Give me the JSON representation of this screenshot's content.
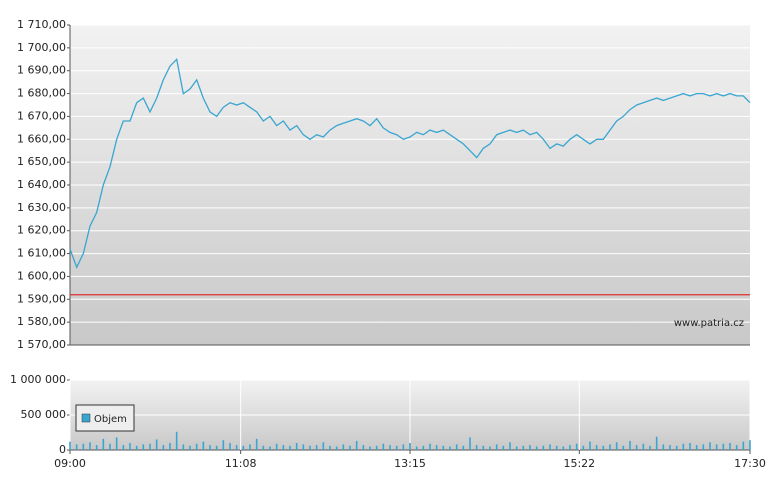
{
  "chart_data": [
    {
      "type": "line",
      "x": [
        "09:00",
        "09:05",
        "09:10",
        "09:15",
        "09:20",
        "09:25",
        "09:30",
        "09:35",
        "09:40",
        "09:45",
        "09:50",
        "09:55",
        "10:00",
        "10:05",
        "10:10",
        "10:15",
        "10:20",
        "10:25",
        "10:30",
        "10:35",
        "10:40",
        "10:45",
        "10:50",
        "10:55",
        "11:00",
        "11:05",
        "11:10",
        "11:15",
        "11:20",
        "11:25",
        "11:30",
        "11:35",
        "11:40",
        "11:45",
        "11:50",
        "11:55",
        "12:00",
        "12:05",
        "12:10",
        "12:15",
        "12:20",
        "12:25",
        "12:30",
        "12:35",
        "12:40",
        "12:45",
        "12:50",
        "12:55",
        "13:00",
        "13:05",
        "13:10",
        "13:15",
        "13:20",
        "13:25",
        "13:30",
        "13:35",
        "13:40",
        "13:45",
        "13:50",
        "13:55",
        "14:00",
        "14:05",
        "14:10",
        "14:15",
        "14:20",
        "14:25",
        "14:30",
        "14:35",
        "14:40",
        "14:45",
        "14:50",
        "14:55",
        "15:00",
        "15:05",
        "15:10",
        "15:15",
        "15:20",
        "15:25",
        "15:30",
        "15:35",
        "15:40",
        "15:45",
        "15:50",
        "15:55",
        "16:00",
        "16:05",
        "16:10",
        "16:15",
        "16:20",
        "16:25",
        "16:30",
        "16:35",
        "16:40",
        "16:45",
        "16:50",
        "16:55",
        "17:00",
        "17:05",
        "17:10",
        "17:15",
        "17:20",
        "17:25",
        "17:30"
      ],
      "series": [
        {
          "color": "#3aa6d0",
          "values": [
            1612,
            1604,
            1610,
            1622,
            1628,
            1640,
            1648,
            1660,
            1668,
            1668,
            1676,
            1678,
            1672,
            1678,
            1686,
            1692,
            1695,
            1680,
            1682,
            1686,
            1678,
            1672,
            1670,
            1674,
            1676,
            1675,
            1676,
            1674,
            1672,
            1668,
            1670,
            1666,
            1668,
            1664,
            1666,
            1662,
            1660,
            1662,
            1661,
            1664,
            1666,
            1667,
            1668,
            1669,
            1668,
            1666,
            1669,
            1665,
            1663,
            1662,
            1660,
            1661,
            1663,
            1662,
            1664,
            1663,
            1664,
            1662,
            1660,
            1658,
            1655,
            1652,
            1656,
            1658,
            1662,
            1663,
            1664,
            1663,
            1664,
            1662,
            1663,
            1660,
            1656,
            1658,
            1657,
            1660,
            1662,
            1660,
            1658,
            1660,
            1660,
            1664,
            1668,
            1670,
            1673,
            1675,
            1676,
            1677,
            1678,
            1677,
            1678,
            1679,
            1680,
            1679,
            1680,
            1680,
            1679,
            1680,
            1679,
            1680,
            1679,
            1679,
            1676
          ]
        }
      ],
      "xlim": [
        "09:00",
        "17:30"
      ],
      "ylim": [
        1570,
        1710
      ],
      "yticks": [
        {
          "value": 1570,
          "label": "1 570,00"
        },
        {
          "value": 1580,
          "label": "1 580,00"
        },
        {
          "value": 1590,
          "label": "1 590,00"
        },
        {
          "value": 1600,
          "label": "1 600,00"
        },
        {
          "value": 1610,
          "label": "1 610,00"
        },
        {
          "value": 1620,
          "label": "1 620,00"
        },
        {
          "value": 1630,
          "label": "1 630,00"
        },
        {
          "value": 1640,
          "label": "1 640,00"
        },
        {
          "value": 1650,
          "label": "1 650,00"
        },
        {
          "value": 1660,
          "label": "1 660,00"
        },
        {
          "value": 1670,
          "label": "1 670,00"
        },
        {
          "value": 1680,
          "label": "1 680,00"
        },
        {
          "value": 1690,
          "label": "1 690,00"
        },
        {
          "value": 1700,
          "label": "1 700,00"
        },
        {
          "value": 1710,
          "label": "1 710,00"
        }
      ],
      "reference_value": 1592,
      "reference_color": "#e03030",
      "watermark": "www.patria.cz",
      "grid": true
    },
    {
      "type": "bar",
      "x": [
        "09:00",
        "09:05",
        "09:10",
        "09:15",
        "09:20",
        "09:25",
        "09:30",
        "09:35",
        "09:40",
        "09:45",
        "09:50",
        "09:55",
        "10:00",
        "10:05",
        "10:10",
        "10:15",
        "10:20",
        "10:25",
        "10:30",
        "10:35",
        "10:40",
        "10:45",
        "10:50",
        "10:55",
        "11:00",
        "11:05",
        "11:10",
        "11:15",
        "11:20",
        "11:25",
        "11:30",
        "11:35",
        "11:40",
        "11:45",
        "11:50",
        "11:55",
        "12:00",
        "12:05",
        "12:10",
        "12:15",
        "12:20",
        "12:25",
        "12:30",
        "12:35",
        "12:40",
        "12:45",
        "12:50",
        "12:55",
        "13:00",
        "13:05",
        "13:10",
        "13:15",
        "13:20",
        "13:25",
        "13:30",
        "13:35",
        "13:40",
        "13:45",
        "13:50",
        "13:55",
        "14:00",
        "14:05",
        "14:10",
        "14:15",
        "14:20",
        "14:25",
        "14:30",
        "14:35",
        "14:40",
        "14:45",
        "14:50",
        "14:55",
        "15:00",
        "15:05",
        "15:10",
        "15:15",
        "15:20",
        "15:25",
        "15:30",
        "15:35",
        "15:40",
        "15:45",
        "15:50",
        "15:55",
        "16:00",
        "16:05",
        "16:10",
        "16:15",
        "16:20",
        "16:25",
        "16:30",
        "16:35",
        "16:40",
        "16:45",
        "16:50",
        "16:55",
        "17:00",
        "17:05",
        "17:10",
        "17:15",
        "17:20",
        "17:25",
        "17:30"
      ],
      "series": [
        {
          "name": "Objem",
          "color": "#3aa6d0",
          "values": [
            120000,
            80000,
            90000,
            110000,
            70000,
            160000,
            90000,
            180000,
            70000,
            100000,
            60000,
            80000,
            90000,
            150000,
            70000,
            100000,
            260000,
            80000,
            60000,
            90000,
            120000,
            70000,
            60000,
            140000,
            100000,
            70000,
            60000,
            80000,
            160000,
            60000,
            50000,
            90000,
            70000,
            60000,
            100000,
            80000,
            60000,
            70000,
            110000,
            60000,
            50000,
            80000,
            60000,
            130000,
            70000,
            50000,
            60000,
            90000,
            70000,
            60000,
            80000,
            100000,
            50000,
            60000,
            90000,
            70000,
            60000,
            50000,
            80000,
            60000,
            180000,
            70000,
            60000,
            50000,
            80000,
            60000,
            110000,
            50000,
            60000,
            70000,
            50000,
            60000,
            80000,
            60000,
            50000,
            70000,
            90000,
            60000,
            120000,
            70000,
            60000,
            80000,
            110000,
            60000,
            130000,
            70000,
            90000,
            60000,
            190000,
            80000,
            70000,
            60000,
            90000,
            100000,
            70000,
            80000,
            110000,
            80000,
            90000,
            100000,
            70000,
            120000,
            140000
          ]
        }
      ],
      "xlim": [
        "09:00",
        "17:30"
      ],
      "xticks": [
        "09:00",
        "11:08",
        "13:15",
        "15:22",
        "17:30"
      ],
      "ylim": [
        0,
        1000000
      ],
      "yticks": [
        0,
        {
          "value": 500000,
          "label": "500 000"
        },
        {
          "value": 1000000,
          "label": "1 000 000"
        }
      ],
      "legend": "top-left",
      "grid": true
    }
  ]
}
